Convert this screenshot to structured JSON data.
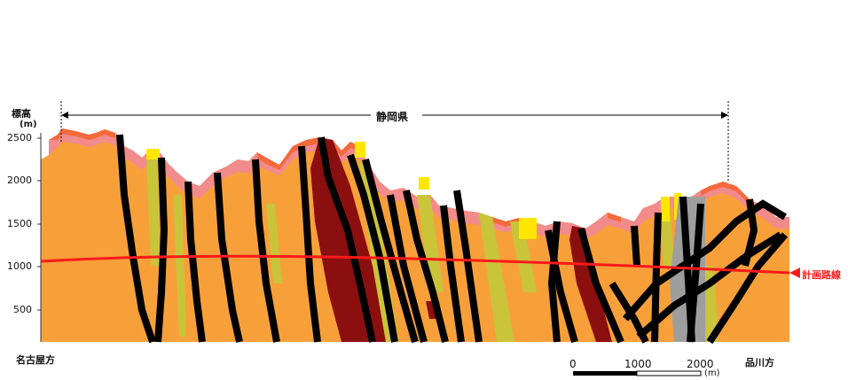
{
  "diagram": {
    "elevation_label": "標高",
    "elevation_unit": "(m)",
    "y_ticks": [
      "2500",
      "2000",
      "1500",
      "1000",
      "500"
    ],
    "prefecture_label": "静岡県",
    "route_label": "計画路線",
    "left_end_label": "名古屋方",
    "right_end_label": "品川方",
    "scale_ticks": [
      "0",
      "1000",
      "2000"
    ],
    "scale_unit": "(m)"
  },
  "colors": {
    "base_rock": "#f7a03a",
    "weathered": "#f28b8b",
    "surface": "#f46a3c",
    "band_yellow_green": "#c9c43a",
    "band_yellow": "#ffe600",
    "fault_dark_red": "#8b0f0f",
    "fault_black": "#000000",
    "band_gray": "#9e9e9e",
    "route_line": "#ff1a1a"
  }
}
